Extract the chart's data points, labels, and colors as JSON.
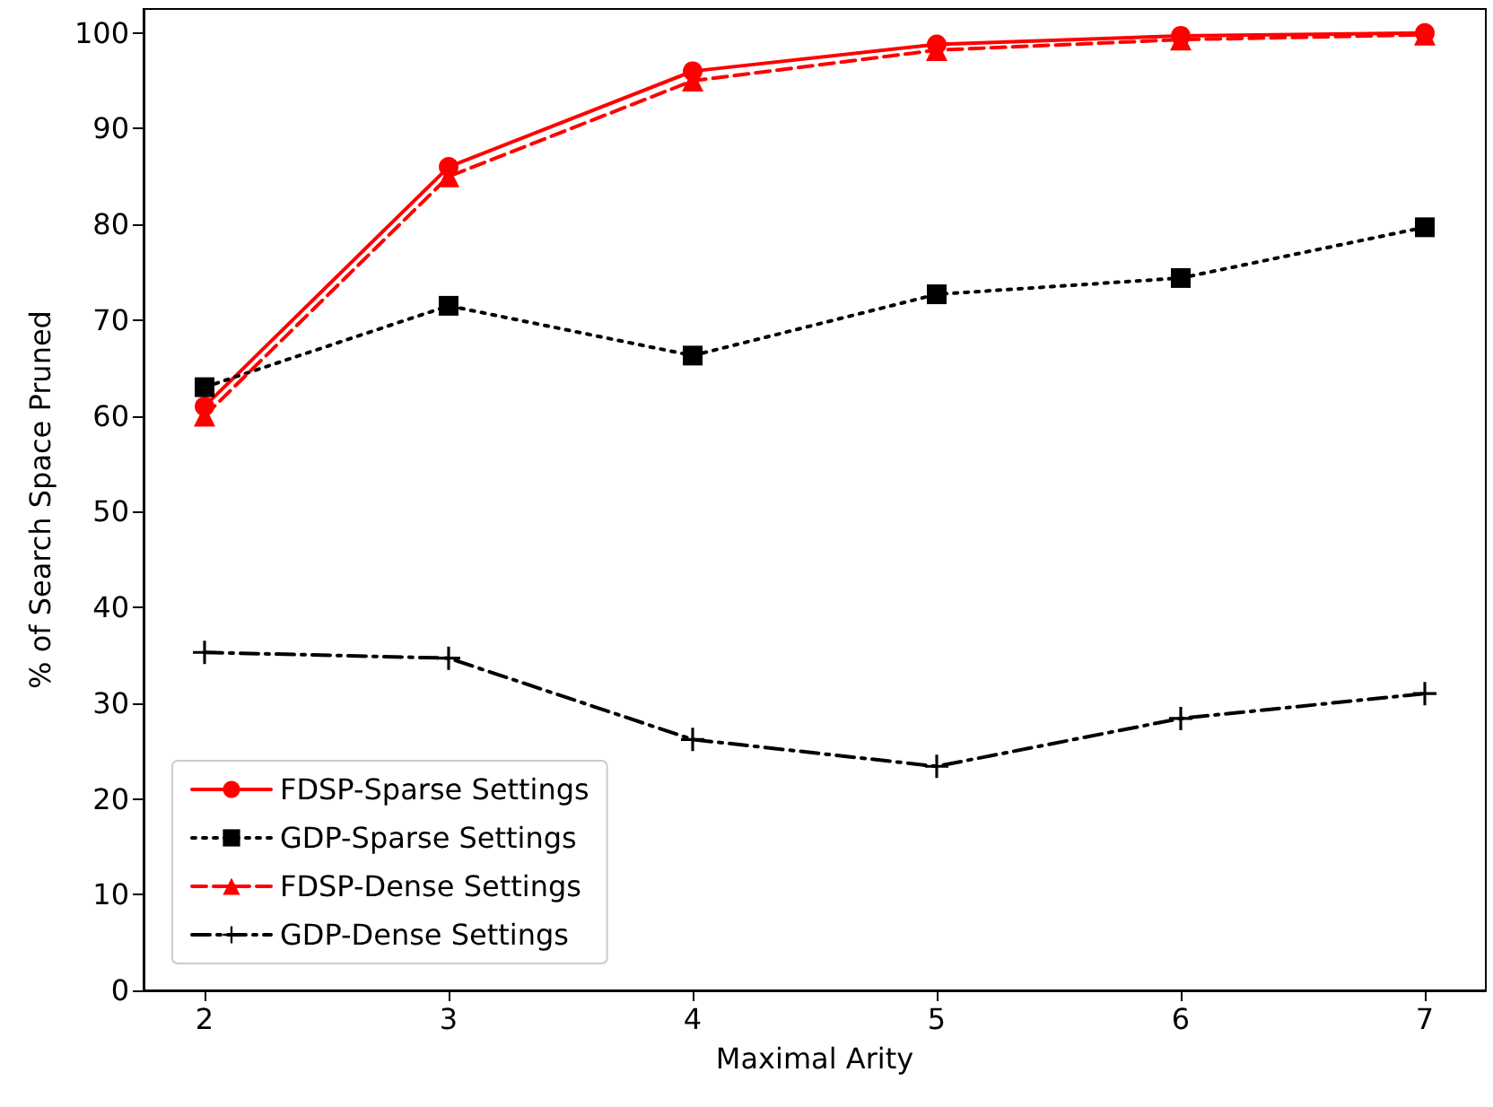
{
  "chart_data": {
    "type": "line",
    "xlabel": "Maximal Arity",
    "ylabel": "% of Search Space Pruned",
    "x": [
      2,
      3,
      4,
      5,
      6,
      7
    ],
    "xlim": [
      1.75,
      7.25
    ],
    "xticks": [
      2,
      3,
      4,
      5,
      6,
      7
    ],
    "ylim": [
      0,
      102.5
    ],
    "yticks": [
      0,
      10,
      20,
      30,
      40,
      50,
      60,
      70,
      80,
      90,
      100
    ],
    "grid": false,
    "legend": "bottom left",
    "series": [
      {
        "name": "FDSP-Sparse Settings",
        "color": "#ff0000",
        "marker": "circle",
        "line_style": "solid",
        "values": [
          61,
          86,
          96,
          98.8,
          99.7,
          100
        ]
      },
      {
        "name": "GDP-Sparse Settings",
        "color": "#000000",
        "marker": "square",
        "line_style": "dotted",
        "values": [
          63,
          71.5,
          66.3,
          72.7,
          74.4,
          79.7
        ]
      },
      {
        "name": "FDSP-Dense Settings",
        "color": "#ff0000",
        "marker": "triangle",
        "line_style": "dashed",
        "values": [
          60,
          85,
          95,
          98.2,
          99.3,
          99.8
        ]
      },
      {
        "name": "GDP-Dense Settings",
        "color": "#000000",
        "marker": "cross",
        "line_style": "dashdot",
        "values": [
          35.3,
          34.7,
          26.2,
          23.4,
          28.4,
          31.0
        ]
      }
    ]
  }
}
